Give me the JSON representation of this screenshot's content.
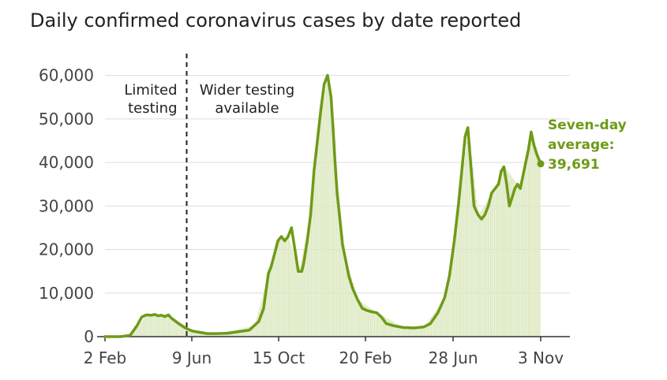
{
  "chart_data": {
    "type": "line",
    "title": "Daily confirmed coronavirus cases by date reported",
    "xlabel": "",
    "ylabel": "",
    "x_ticks": [
      "2 Feb",
      "9 Jun",
      "15 Oct",
      "20 Feb",
      "28 Jun",
      "3 Nov"
    ],
    "x_range": [
      "2020-02-02",
      "2021-11-03"
    ],
    "ylim": [
      0,
      65000
    ],
    "y_ticks": [
      0,
      10000,
      20000,
      30000,
      40000,
      50000,
      60000
    ],
    "y_tick_labels": [
      "0",
      "10,000",
      "20,000",
      "30,000",
      "40,000",
      "50,000",
      "60,000"
    ],
    "grid": "horizontal",
    "series": [
      {
        "kind": "line",
        "color": "#6f9a17",
        "x": [
          "2020-02-02",
          "2020-02-25",
          "2020-03-10",
          "2020-03-20",
          "2020-03-27",
          "2020-04-03",
          "2020-04-10",
          "2020-04-15",
          "2020-04-20",
          "2020-04-25",
          "2020-04-30",
          "2020-05-05",
          "2020-05-10",
          "2020-05-20",
          "2020-05-30",
          "2020-06-09",
          "2020-06-20",
          "2020-07-01",
          "2020-07-15",
          "2020-08-01",
          "2020-08-15",
          "2020-09-01",
          "2020-09-08",
          "2020-09-15",
          "2020-09-22",
          "2020-09-29",
          "2020-10-03",
          "2020-10-08",
          "2020-10-13",
          "2020-10-18",
          "2020-10-23",
          "2020-10-28",
          "2020-11-02",
          "2020-11-07",
          "2020-11-12",
          "2020-11-17",
          "2020-11-20",
          "2020-11-25",
          "2020-11-30",
          "2020-12-05",
          "2020-12-10",
          "2020-12-15",
          "2020-12-20",
          "2020-12-25",
          "2020-12-30",
          "2021-01-02",
          "2021-01-05",
          "2021-01-08",
          "2021-01-12",
          "2021-01-16",
          "2021-01-20",
          "2021-01-25",
          "2021-01-31",
          "2021-02-07",
          "2021-02-14",
          "2021-02-21",
          "2021-02-28",
          "2021-03-07",
          "2021-03-14",
          "2021-03-21",
          "2021-04-01",
          "2021-04-15",
          "2021-05-01",
          "2021-05-15",
          "2021-05-25",
          "2021-06-05",
          "2021-06-15",
          "2021-06-22",
          "2021-06-29",
          "2021-07-05",
          "2021-07-10",
          "2021-07-15",
          "2021-07-19",
          "2021-07-23",
          "2021-07-28",
          "2021-08-03",
          "2021-08-08",
          "2021-08-13",
          "2021-08-18",
          "2021-08-23",
          "2021-08-28",
          "2021-09-02",
          "2021-09-06",
          "2021-09-10",
          "2021-09-14",
          "2021-09-18",
          "2021-09-22",
          "2021-09-26",
          "2021-09-30",
          "2021-10-04",
          "2021-10-08",
          "2021-10-12",
          "2021-10-16",
          "2021-10-20",
          "2021-10-24",
          "2021-10-28",
          "2021-11-03"
        ],
        "values": [
          0,
          0,
          300,
          2500,
          4500,
          5000,
          4900,
          5100,
          4800,
          4900,
          4600,
          5000,
          4200,
          3000,
          2000,
          1300,
          1000,
          700,
          700,
          800,
          1100,
          1500,
          2500,
          3500,
          6500,
          14500,
          16000,
          19000,
          22000,
          23000,
          22000,
          23000,
          25000,
          20000,
          15000,
          15000,
          17000,
          22000,
          28000,
          38000,
          45000,
          52000,
          58000,
          60000,
          55000,
          48000,
          40000,
          33000,
          27000,
          21000,
          18000,
          14000,
          11000,
          8500,
          6500,
          6000,
          5700,
          5500,
          4500,
          3000,
          2500,
          2100,
          2000,
          2200,
          3000,
          5500,
          9000,
          14000,
          22000,
          30000,
          38000,
          46000,
          48000,
          40000,
          30000,
          28000,
          27000,
          28000,
          30000,
          33000,
          34000,
          35000,
          38000,
          39000,
          35000,
          30000,
          32000,
          34000,
          35000,
          34000,
          37000,
          40000,
          43000,
          47000,
          44000,
          42000,
          39691
        ]
      },
      {
        "kind": "bar",
        "color": "#dde9c2",
        "x": [
          "2020-02-02",
          "2020-03-10",
          "2020-04-03",
          "2020-05-05",
          "2020-06-09",
          "2020-07-15",
          "2020-09-08",
          "2020-09-29",
          "2020-10-13",
          "2020-10-28",
          "2020-11-12",
          "2020-11-30",
          "2020-12-15",
          "2020-12-25",
          "2021-01-02",
          "2021-01-08",
          "2021-01-20",
          "2021-02-07",
          "2021-03-07",
          "2021-04-15",
          "2021-05-15",
          "2021-06-15",
          "2021-07-05",
          "2021-07-19",
          "2021-08-03",
          "2021-08-23",
          "2021-09-10",
          "2021-10-04",
          "2021-10-20",
          "2021-11-03"
        ],
        "values": [
          0,
          300,
          5000,
          5000,
          1300,
          700,
          2500,
          14500,
          22000,
          23000,
          15000,
          28000,
          52000,
          60000,
          48000,
          33000,
          18000,
          8500,
          5500,
          2100,
          2200,
          9000,
          30000,
          48000,
          28000,
          33000,
          39000,
          34000,
          47000,
          39691
        ]
      }
    ],
    "annotations": {
      "divider_date": "2020-06-01",
      "left_text": [
        "Limited",
        "testing"
      ],
      "right_text": [
        "Wider testing",
        "available"
      ]
    },
    "end_label": {
      "lines": [
        "Seven-day",
        "average:",
        "39,691"
      ],
      "value": 39691,
      "date": "2021-11-03"
    }
  }
}
